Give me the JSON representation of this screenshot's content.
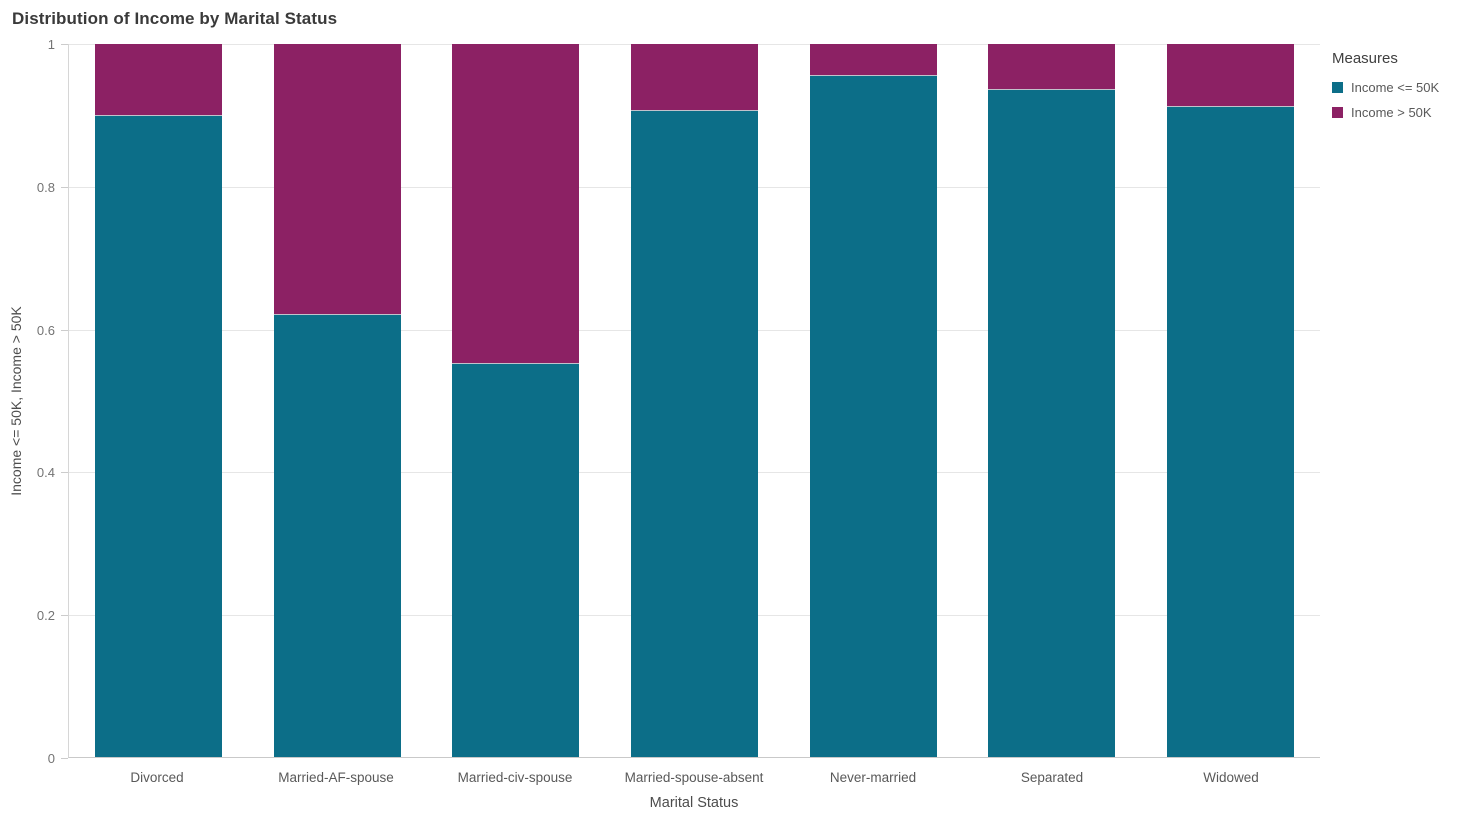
{
  "title": "Distribution of Income by Marital Status",
  "colors": {
    "income_le_50k": "#0c6e88",
    "income_gt_50k": "#8c2164",
    "gridline": "#e6e6e6",
    "axis_line": "#cccccc"
  },
  "legend": {
    "title": "Measures",
    "items": [
      {
        "label": "Income <= 50K",
        "color": "#0c6e88"
      },
      {
        "label": "Income > 50K",
        "color": "#8c2164"
      }
    ]
  },
  "chart_data": {
    "type": "bar",
    "stacked": true,
    "normalized": true,
    "title": "Distribution of Income by Marital Status",
    "xlabel": "Marital Status",
    "ylabel": "Income <= 50K, Income > 50K",
    "legend_title": "Measures",
    "legend_position": "top-right",
    "grid": true,
    "ylim": [
      0,
      1
    ],
    "yticks": [
      0,
      0.2,
      0.4,
      0.6,
      0.8,
      1
    ],
    "ytick_labels": [
      "0",
      "0.2",
      "0.4",
      "0.6",
      "0.8",
      "1"
    ],
    "categories": [
      "Divorced",
      "Married-AF-spouse",
      "Married-civ-spouse",
      "Married-spouse-absent",
      "Never-married",
      "Separated",
      "Widowed"
    ],
    "series": [
      {
        "name": "Income <= 50K",
        "color": "#0c6e88",
        "values": [
          0.9,
          0.622,
          0.553,
          0.908,
          0.956,
          0.937,
          0.913
        ]
      },
      {
        "name": "Income > 50K",
        "color": "#8c2164",
        "values": [
          0.1,
          0.378,
          0.447,
          0.092,
          0.044,
          0.063,
          0.087
        ]
      }
    ]
  }
}
